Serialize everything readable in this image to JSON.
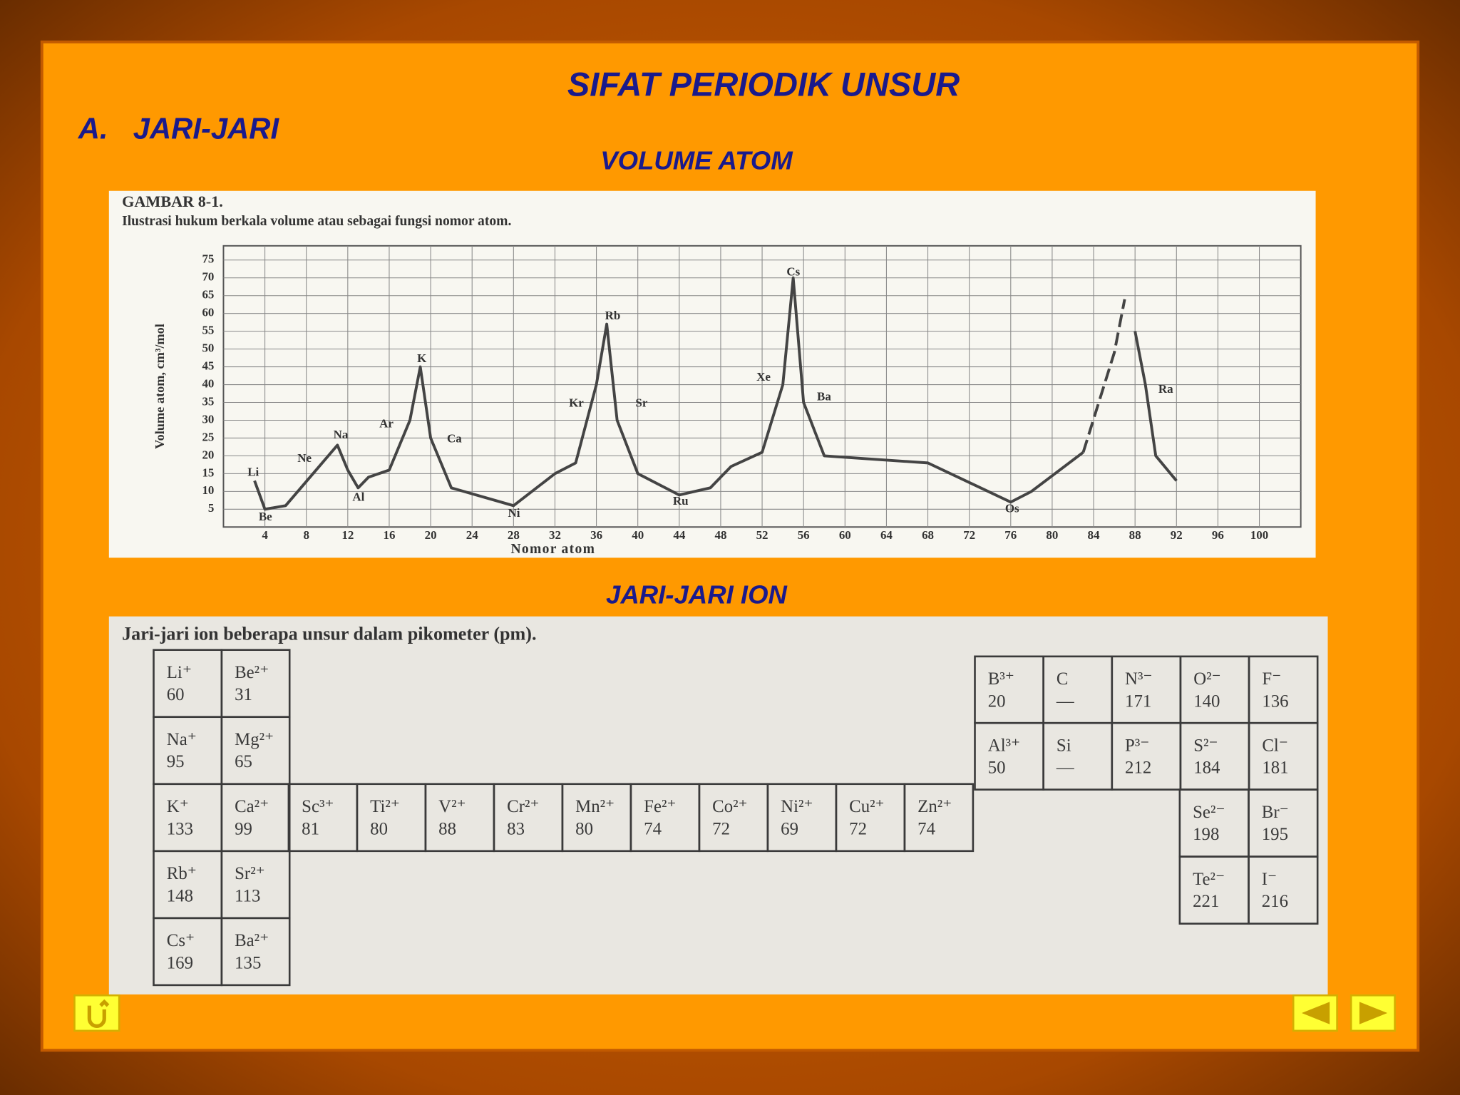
{
  "title": "SIFAT PERIODIK UNSUR",
  "section_number": "A.",
  "section_title": "JARI-JARI",
  "chart_heading": "VOLUME ATOM",
  "chart_data": {
    "type": "line",
    "title": "GAMBAR 8-1.",
    "subtitle": "Ilustrasi hukum berkala volume atau sebagai fungsi nomor atom.",
    "xlabel": "Nomor atom",
    "ylabel": "Volume atom, cm³/mol",
    "x": [
      3,
      4,
      6,
      11,
      12,
      13,
      14,
      16,
      18,
      19,
      20,
      22,
      28,
      32,
      34,
      36,
      37,
      38,
      40,
      44,
      47,
      49,
      52,
      54,
      55,
      56,
      58,
      68,
      76,
      78,
      83,
      86,
      87,
      88,
      89,
      90,
      92
    ],
    "series": [
      {
        "color": "#444444",
        "values": [
          13,
          5,
          6,
          23,
          16,
          11,
          14,
          16,
          30,
          45,
          25,
          11,
          6,
          15,
          18,
          40,
          57,
          30,
          15,
          9,
          11,
          17,
          21,
          40,
          70,
          35,
          20,
          18,
          7,
          10,
          21,
          null,
          null,
          55,
          40,
          20,
          13
        ]
      },
      {
        "color": "#444444",
        "dashed": true,
        "values": [
          null,
          null,
          null,
          null,
          null,
          null,
          null,
          null,
          null,
          null,
          null,
          null,
          null,
          null,
          null,
          null,
          null,
          null,
          null,
          null,
          null,
          null,
          null,
          null,
          null,
          null,
          null,
          null,
          null,
          null,
          21,
          49,
          64,
          null,
          null,
          null,
          null
        ]
      }
    ],
    "xlim": [
      0,
      104
    ],
    "ylim": [
      0,
      79
    ],
    "xticks": [
      4,
      8,
      12,
      16,
      20,
      24,
      28,
      32,
      36,
      40,
      44,
      48,
      52,
      56,
      60,
      64,
      68,
      72,
      76,
      80,
      84,
      88,
      92,
      96,
      100
    ],
    "yticks": [
      5,
      10,
      15,
      20,
      25,
      30,
      35,
      40,
      45,
      50,
      55,
      60,
      65,
      70,
      75
    ],
    "grid": true,
    "annotations": [
      "Li",
      "Be",
      "Ne",
      "Na",
      "Al",
      "Ar",
      "K",
      "Ca",
      "Ni",
      "Kr",
      "Rb",
      "Sr",
      "Ru",
      "Xe",
      "Cs",
      "Ba",
      "Os",
      "Ra"
    ]
  },
  "table_heading": "JARI-JARI ION",
  "table": {
    "caption": "Jari-jari ion beberapa unsur dalam pikometer (pm).",
    "s_block": [
      [
        {
          "ion": "Li⁺",
          "radius": 60
        },
        {
          "ion": "Be²⁺",
          "radius": 31
        }
      ],
      [
        {
          "ion": "Na⁺",
          "radius": 95
        },
        {
          "ion": "Mg²⁺",
          "radius": 65
        }
      ],
      [
        {
          "ion": "K⁺",
          "radius": 133
        },
        {
          "ion": "Ca²⁺",
          "radius": 99
        }
      ],
      [
        {
          "ion": "Rb⁺",
          "radius": 148
        },
        {
          "ion": "Sr²⁺",
          "radius": 113
        }
      ],
      [
        {
          "ion": "Cs⁺",
          "radius": 169
        },
        {
          "ion": "Ba²⁺",
          "radius": 135
        }
      ]
    ],
    "d_block": [
      [
        {
          "ion": "Sc³⁺",
          "radius": 81
        },
        {
          "ion": "Ti²⁺",
          "radius": 80
        },
        {
          "ion": "V²⁺",
          "radius": 88
        },
        {
          "ion": "Cr²⁺",
          "radius": 83
        },
        {
          "ion": "Mn²⁺",
          "radius": 80
        },
        {
          "ion": "Fe²⁺",
          "radius": 74
        },
        {
          "ion": "Co²⁺",
          "radius": 72
        },
        {
          "ion": "Ni²⁺",
          "radius": 69
        },
        {
          "ion": "Cu²⁺",
          "radius": 72
        },
        {
          "ion": "Zn²⁺",
          "radius": 74
        }
      ]
    ],
    "p_block": [
      [
        {
          "ion": "B³⁺",
          "radius": 20
        },
        {
          "ion": "C",
          "radius": "—"
        },
        {
          "ion": "N³⁻",
          "radius": 171
        },
        {
          "ion": "O²⁻",
          "radius": 140
        },
        {
          "ion": "F⁻",
          "radius": 136
        }
      ],
      [
        {
          "ion": "Al³⁺",
          "radius": 50
        },
        {
          "ion": "Si",
          "radius": "—"
        },
        {
          "ion": "P³⁻",
          "radius": 212
        },
        {
          "ion": "S²⁻",
          "radius": 184
        },
        {
          "ion": "Cl⁻",
          "radius": 181
        }
      ]
    ],
    "halogen_block": [
      [
        {
          "ion": "Se²⁻",
          "radius": 198
        },
        {
          "ion": "Br⁻",
          "radius": 195
        }
      ],
      [
        {
          "ion": "Te²⁻",
          "radius": 221
        },
        {
          "ion": "I⁻",
          "radius": 216
        }
      ]
    ]
  }
}
